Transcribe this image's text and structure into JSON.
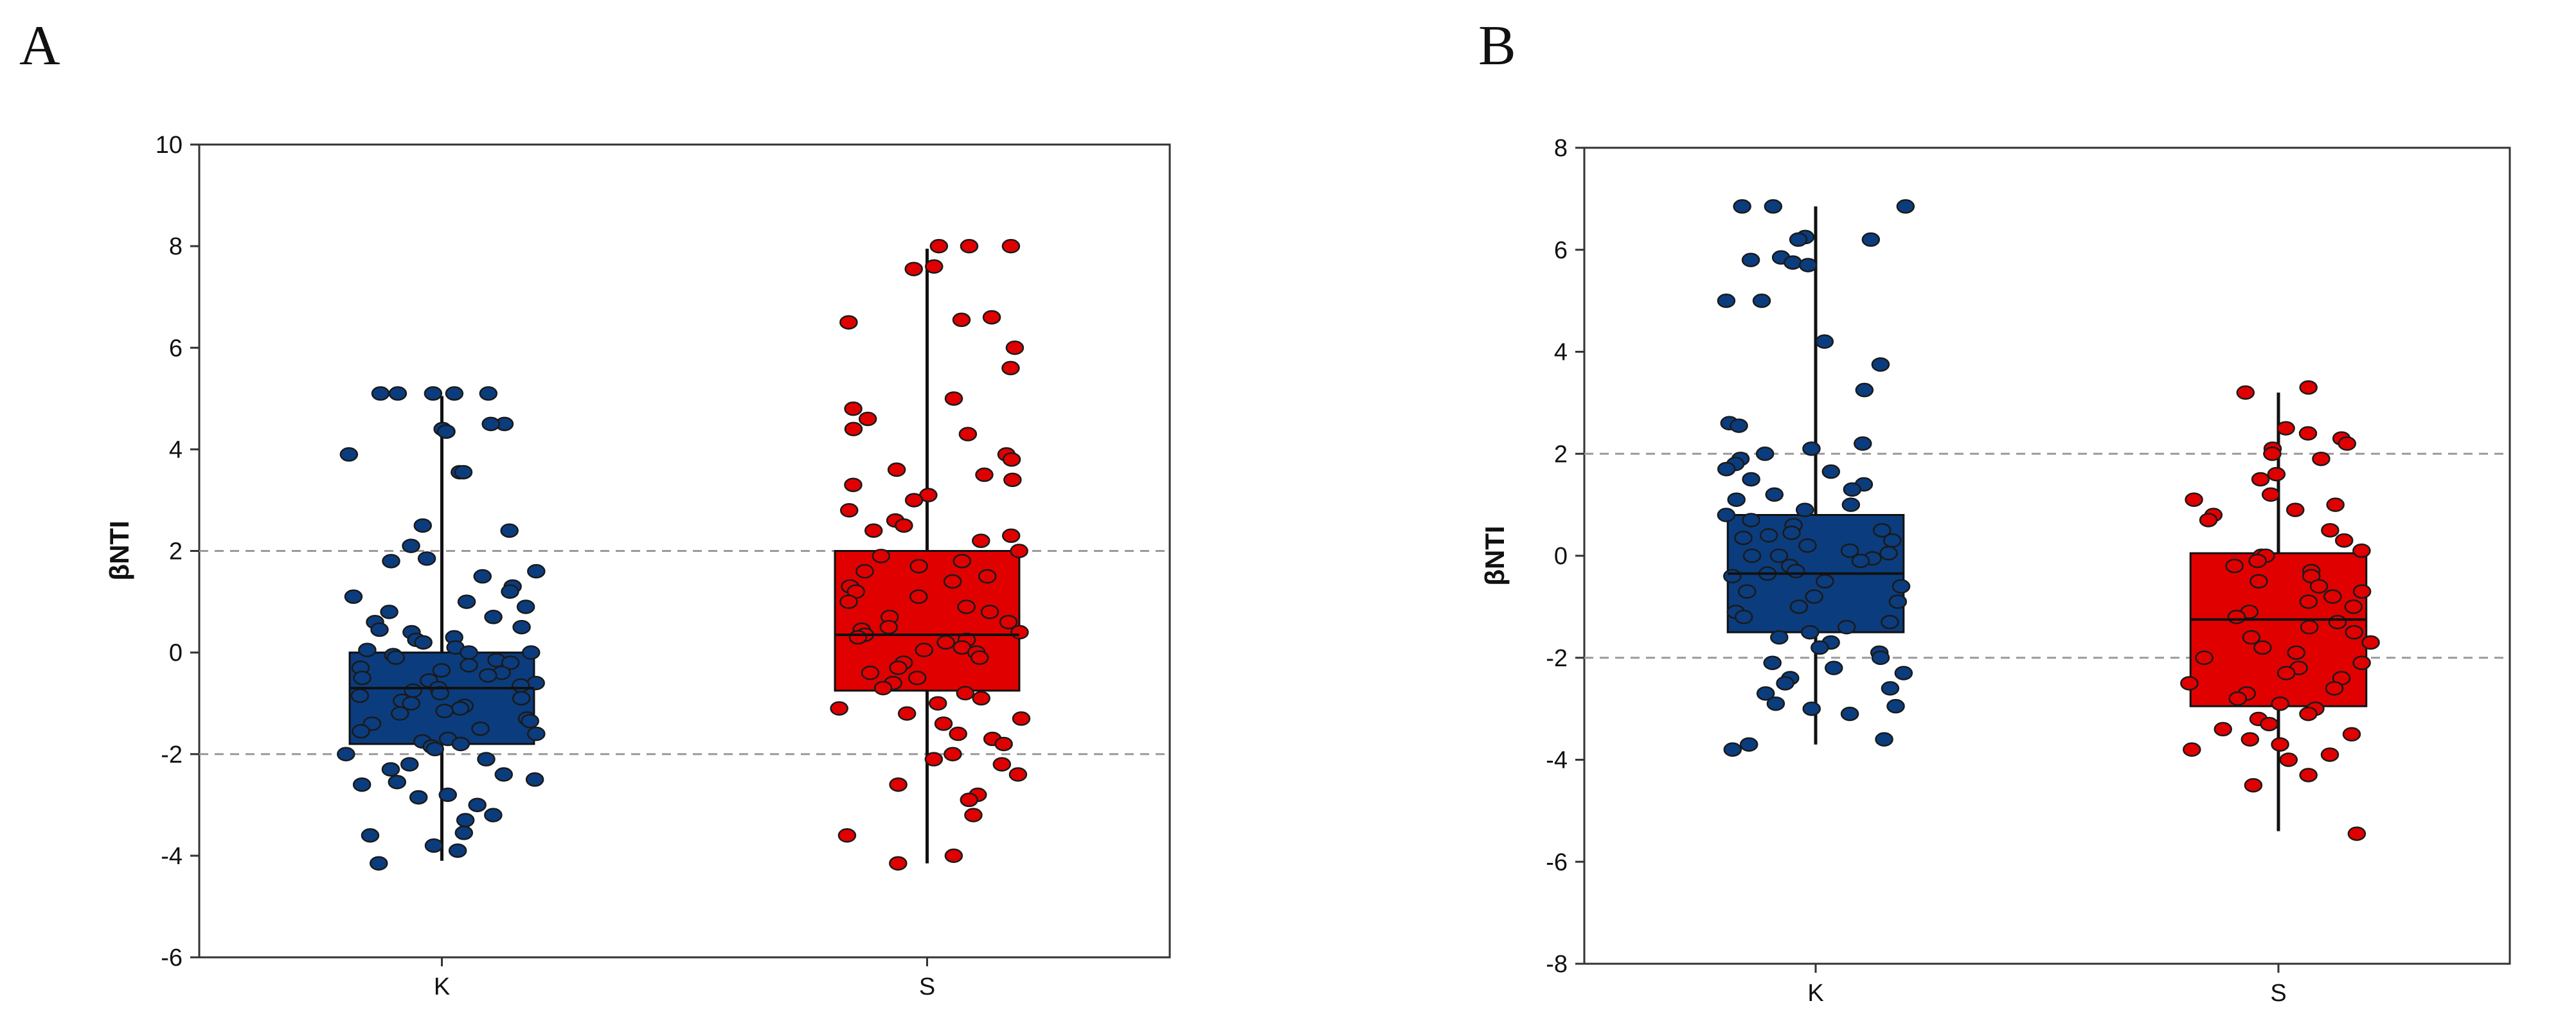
{
  "chart_data": [
    {
      "type": "box",
      "panel_label": "A",
      "title": "",
      "xlabel": "",
      "ylabel": "βNTI",
      "ylim": [
        -6,
        10
      ],
      "yticks": [
        -6,
        -4,
        -2,
        0,
        2,
        4,
        6,
        8,
        10
      ],
      "reference_lines": [
        -2,
        2
      ],
      "grid": false,
      "categories": [
        "K",
        "S"
      ],
      "boxes": [
        {
          "category": "K",
          "color": "#0b3c7d",
          "min": -4.1,
          "q1": -1.8,
          "median": -0.7,
          "q3": 0.0,
          "max": 5.05,
          "points": [
            5.1,
            5.1,
            5.1,
            5.1,
            5.1,
            4.5,
            4.5,
            4.4,
            4.35,
            4.35,
            3.9,
            3.55,
            3.55,
            2.5,
            2.4,
            2.1,
            1.85,
            1.8,
            1.6,
            1.5,
            1.3,
            1.2,
            1.1,
            1.0,
            0.9,
            0.8,
            0.7,
            0.6,
            0.5,
            0.45,
            0.4,
            0.3,
            0.25,
            0.2,
            0.1,
            0.05,
            0.0,
            0.0,
            -0.05,
            -0.1,
            -0.15,
            -0.2,
            -0.25,
            -0.3,
            -0.35,
            -0.4,
            -0.45,
            -0.5,
            -0.55,
            -0.6,
            -0.65,
            -0.7,
            -0.75,
            -0.8,
            -0.85,
            -0.9,
            -0.95,
            -1.0,
            -1.05,
            -1.1,
            -1.15,
            -1.2,
            -1.3,
            -1.35,
            -1.4,
            -1.5,
            -1.55,
            -1.6,
            -1.7,
            -1.75,
            -1.8,
            -1.85,
            -1.9,
            -2.0,
            -2.1,
            -2.2,
            -2.3,
            -2.4,
            -2.5,
            -2.55,
            -2.6,
            -2.8,
            -2.85,
            -3.0,
            -3.2,
            -3.3,
            -3.55,
            -3.6,
            -3.8,
            -3.9,
            -4.15
          ]
        },
        {
          "category": "S",
          "color": "#e00000",
          "min": -4.15,
          "q1": -0.75,
          "median": 0.35,
          "q3": 2.0,
          "max": 7.95,
          "points": [
            8.0,
            8.0,
            8.0,
            7.6,
            7.55,
            6.6,
            6.55,
            6.5,
            6.0,
            5.6,
            5.0,
            4.8,
            4.6,
            4.4,
            4.3,
            3.9,
            3.8,
            3.6,
            3.5,
            3.4,
            3.3,
            3.1,
            3.0,
            2.8,
            2.6,
            2.5,
            2.4,
            2.3,
            2.2,
            2.0,
            1.9,
            1.8,
            1.7,
            1.6,
            1.5,
            1.4,
            1.3,
            1.2,
            1.1,
            1.0,
            0.9,
            0.8,
            0.7,
            0.6,
            0.5,
            0.45,
            0.4,
            0.35,
            0.3,
            0.25,
            0.2,
            0.1,
            0.05,
            0.0,
            -0.1,
            -0.2,
            -0.3,
            -0.4,
            -0.5,
            -0.6,
            -0.7,
            -0.8,
            -0.9,
            -1.0,
            -1.1,
            -1.2,
            -1.3,
            -1.4,
            -1.6,
            -1.7,
            -1.8,
            -2.0,
            -2.1,
            -2.2,
            -2.4,
            -2.6,
            -2.8,
            -2.9,
            -3.2,
            -3.6,
            -4.0,
            -4.15
          ]
        }
      ]
    },
    {
      "type": "box",
      "panel_label": "B",
      "title": "",
      "xlabel": "",
      "ylabel": "βNTI",
      "ylim": [
        -8,
        8
      ],
      "yticks": [
        -8,
        -6,
        -4,
        -2,
        0,
        2,
        4,
        6,
        8
      ],
      "reference_lines": [
        -2,
        2
      ],
      "grid": false,
      "categories": [
        "K",
        "S"
      ],
      "boxes": [
        {
          "category": "K",
          "color": "#0b3c7d",
          "min": -3.7,
          "q1": -1.5,
          "median": -0.35,
          "q3": 0.8,
          "max": 6.85,
          "points": [
            6.85,
            6.85,
            6.85,
            6.25,
            6.2,
            6.2,
            5.85,
            5.8,
            5.75,
            5.7,
            5.0,
            5.0,
            4.2,
            3.75,
            3.25,
            2.6,
            2.55,
            2.2,
            2.1,
            2.0,
            1.9,
            1.8,
            1.7,
            1.65,
            1.5,
            1.4,
            1.3,
            1.2,
            1.1,
            1.0,
            0.9,
            0.8,
            0.7,
            0.6,
            0.5,
            0.45,
            0.4,
            0.35,
            0.3,
            0.2,
            0.1,
            0.05,
            0.0,
            0.0,
            -0.05,
            -0.1,
            -0.2,
            -0.3,
            -0.35,
            -0.4,
            -0.5,
            -0.6,
            -0.7,
            -0.8,
            -0.9,
            -1.0,
            -1.1,
            -1.2,
            -1.3,
            -1.4,
            -1.5,
            -1.6,
            -1.7,
            -1.8,
            -1.9,
            -2.0,
            -2.1,
            -2.2,
            -2.3,
            -2.4,
            -2.5,
            -2.6,
            -2.7,
            -2.9,
            -2.95,
            -3.0,
            -3.1,
            -3.6,
            -3.7,
            -3.8
          ]
        },
        {
          "category": "S",
          "color": "#e00000",
          "min": -5.4,
          "q1": -2.95,
          "median": -1.25,
          "q3": 0.05,
          "max": 3.2,
          "points": [
            3.3,
            3.2,
            2.5,
            2.4,
            2.3,
            2.2,
            2.1,
            2.0,
            1.9,
            1.6,
            1.5,
            1.2,
            1.1,
            1.0,
            0.9,
            0.8,
            0.7,
            0.5,
            0.3,
            0.1,
            0.0,
            0.0,
            -0.1,
            -0.2,
            -0.3,
            -0.4,
            -0.5,
            -0.6,
            -0.7,
            -0.8,
            -0.9,
            -1.0,
            -1.1,
            -1.2,
            -1.3,
            -1.4,
            -1.5,
            -1.6,
            -1.7,
            -1.8,
            -1.9,
            -2.0,
            -2.1,
            -2.2,
            -2.3,
            -2.4,
            -2.5,
            -2.6,
            -2.7,
            -2.8,
            -2.9,
            -3.0,
            -3.1,
            -3.2,
            -3.3,
            -3.4,
            -3.5,
            -3.6,
            -3.7,
            -3.8,
            -3.9,
            -4.0,
            -4.3,
            -4.5,
            -5.45
          ]
        }
      ]
    }
  ]
}
